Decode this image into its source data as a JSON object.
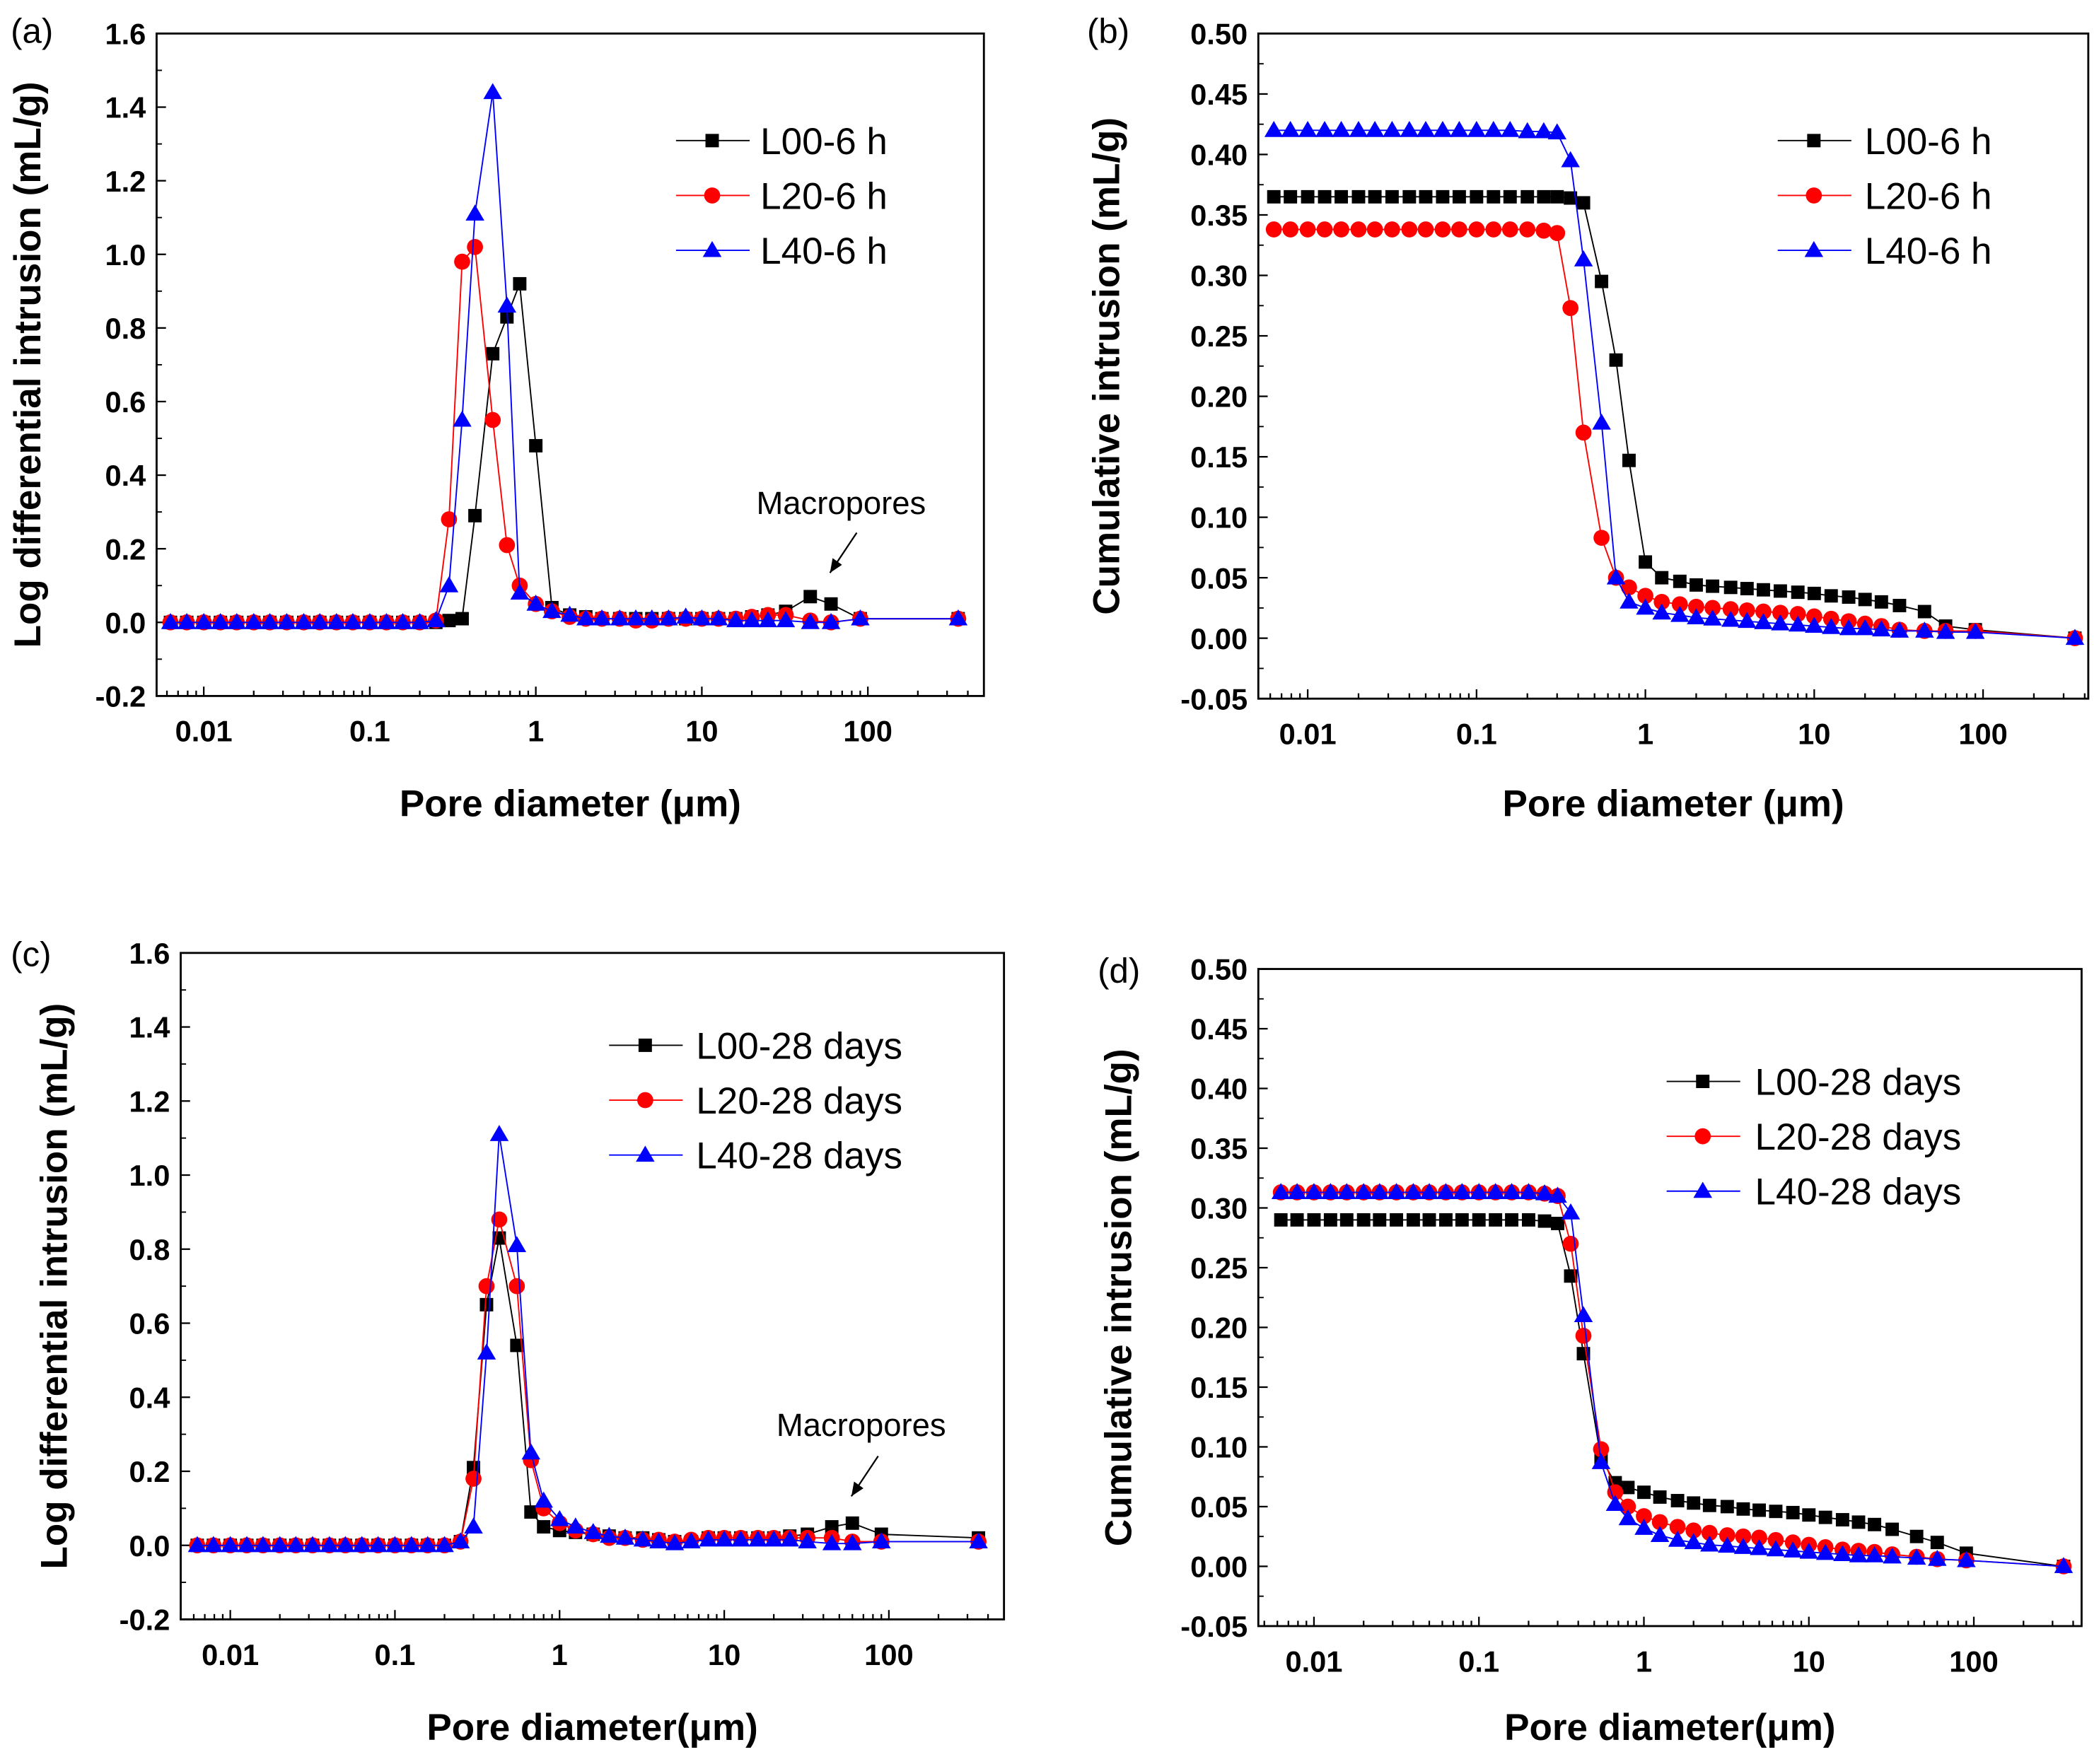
{
  "chart_data": [
    {
      "id": "a",
      "panel_label": "(a)",
      "type": "line",
      "xscale": "log",
      "xlabel": "Pore diameter (μm)",
      "ylabel": "Log differential intrusion (mL/g)",
      "xlim": [
        0.0052,
        500
      ],
      "ylim": [
        -0.2,
        1.6
      ],
      "yticks": [
        -0.2,
        0.0,
        0.2,
        0.4,
        0.6,
        0.8,
        1.0,
        1.2,
        1.4,
        1.6
      ],
      "ytick_labels": [
        "-0.2",
        "0.0",
        "0.2",
        "0.4",
        "0.6",
        "0.8",
        "1.0",
        "1.2",
        "1.4",
        "1.6"
      ],
      "xticks": [
        0.01,
        0.1,
        1,
        10,
        100
      ],
      "xtick_labels": [
        "0.01",
        "0.1",
        "1",
        "10",
        "100"
      ],
      "legend": "top-right",
      "annotation": "Macropores",
      "x": [
        0.0063,
        0.0079,
        0.01,
        0.0126,
        0.0158,
        0.02,
        0.025,
        0.0316,
        0.04,
        0.05,
        0.063,
        0.079,
        0.1,
        0.126,
        0.158,
        0.2,
        0.25,
        0.3,
        0.36,
        0.43,
        0.55,
        0.67,
        0.8,
        1.0,
        1.25,
        1.6,
        2,
        2.5,
        3.2,
        4,
        5,
        6.3,
        8,
        10,
        12.6,
        16,
        20,
        25,
        32,
        45,
        60,
        90,
        350
      ],
      "series": [
        {
          "name": "L00-6 h",
          "color": "#000000",
          "marker": "square",
          "values": [
            0,
            0,
            0,
            0,
            0,
            0,
            0,
            0,
            0,
            0,
            0,
            0,
            0,
            0,
            0,
            0,
            0,
            0.005,
            0.01,
            0.29,
            0.73,
            0.83,
            0.92,
            0.48,
            0.04,
            0.02,
            0.015,
            0.01,
            0.01,
            0.01,
            0.01,
            0.01,
            0.01,
            0.01,
            0.01,
            0.01,
            0.015,
            0.02,
            0.03,
            0.07,
            0.05,
            0.01,
            0.01
          ]
        },
        {
          "name": "L20-6 h",
          "color": "#ff0000",
          "marker": "circle",
          "values": [
            0,
            0,
            0,
            0,
            0,
            0,
            0,
            0,
            0,
            0,
            0,
            0,
            0,
            0,
            0,
            0,
            0.005,
            0.28,
            0.98,
            1.02,
            0.55,
            0.21,
            0.1,
            0.05,
            0.03,
            0.015,
            0.01,
            0.01,
            0.01,
            0.005,
            0.005,
            0.01,
            0.01,
            0.01,
            0.01,
            0.01,
            0.015,
            0.02,
            0.02,
            0.005,
            0,
            0.01,
            0.01
          ]
        },
        {
          "name": "L40-6 h",
          "color": "#0000ff",
          "marker": "triangle",
          "values": [
            0,
            0,
            0,
            0,
            0,
            0,
            0,
            0,
            0,
            0,
            0,
            0,
            0,
            0,
            0,
            0,
            0.005,
            0.1,
            0.55,
            1.11,
            1.44,
            0.86,
            0.08,
            0.05,
            0.03,
            0.02,
            0.01,
            0.01,
            0.01,
            0.01,
            0.01,
            0.01,
            0.015,
            0.01,
            0.01,
            0.005,
            0.005,
            0.005,
            0.005,
            0,
            0,
            0.01,
            0.01
          ]
        }
      ]
    },
    {
      "id": "b",
      "panel_label": "(b)",
      "type": "line",
      "xscale": "log",
      "xlabel": "Pore diameter (μm)",
      "ylabel": "Cumulative intrusion (mL/g)",
      "xlim": [
        0.0051,
        420
      ],
      "ylim": [
        -0.05,
        0.5
      ],
      "yticks": [
        -0.05,
        0,
        0.05,
        0.1,
        0.15,
        0.2,
        0.25,
        0.3,
        0.35,
        0.4,
        0.45,
        0.5
      ],
      "ytick_labels": [
        "-0.05",
        "0.00",
        "0.05",
        "0.10",
        "0.15",
        "0.20",
        "0.25",
        "0.30",
        "0.35",
        "0.40",
        "0.45",
        "0.50"
      ],
      "xticks": [
        0.01,
        0.1,
        1,
        10,
        100
      ],
      "xtick_labels": [
        "0.01",
        "0.1",
        "1",
        "10",
        "100"
      ],
      "legend": "top-right",
      "x": [
        0.0063,
        0.0079,
        0.01,
        0.0126,
        0.0158,
        0.02,
        0.025,
        0.0316,
        0.04,
        0.05,
        0.063,
        0.079,
        0.1,
        0.126,
        0.158,
        0.2,
        0.25,
        0.3,
        0.36,
        0.43,
        0.55,
        0.67,
        0.8,
        1.0,
        1.25,
        1.6,
        2,
        2.5,
        3.2,
        4,
        5,
        6.3,
        8,
        10,
        12.6,
        16,
        20,
        25,
        32,
        45,
        60,
        90,
        350
      ],
      "series": [
        {
          "name": "L00-6 h",
          "color": "#000000",
          "marker": "square",
          "values": [
            0.365,
            0.365,
            0.365,
            0.365,
            0.365,
            0.365,
            0.365,
            0.365,
            0.365,
            0.365,
            0.365,
            0.365,
            0.365,
            0.365,
            0.365,
            0.365,
            0.365,
            0.365,
            0.364,
            0.36,
            0.295,
            0.23,
            0.147,
            0.063,
            0.05,
            0.047,
            0.044,
            0.043,
            0.042,
            0.041,
            0.04,
            0.039,
            0.038,
            0.037,
            0.035,
            0.034,
            0.032,
            0.03,
            0.027,
            0.022,
            0.01,
            0.007,
            0
          ]
        },
        {
          "name": "L20-6 h",
          "color": "#ff0000",
          "marker": "circle",
          "values": [
            0.338,
            0.338,
            0.338,
            0.338,
            0.338,
            0.338,
            0.338,
            0.338,
            0.338,
            0.338,
            0.338,
            0.338,
            0.338,
            0.338,
            0.338,
            0.338,
            0.337,
            0.335,
            0.273,
            0.17,
            0.083,
            0.05,
            0.042,
            0.035,
            0.03,
            0.028,
            0.026,
            0.025,
            0.024,
            0.023,
            0.022,
            0.021,
            0.02,
            0.018,
            0.016,
            0.014,
            0.012,
            0.01,
            0.007,
            0.006,
            0.006,
            0.006,
            0
          ]
        },
        {
          "name": "L40-6 h",
          "color": "#0000ff",
          "marker": "triangle",
          "values": [
            0.42,
            0.42,
            0.42,
            0.42,
            0.42,
            0.42,
            0.42,
            0.42,
            0.42,
            0.42,
            0.42,
            0.42,
            0.42,
            0.42,
            0.42,
            0.419,
            0.419,
            0.418,
            0.395,
            0.313,
            0.178,
            0.05,
            0.03,
            0.025,
            0.021,
            0.019,
            0.017,
            0.016,
            0.015,
            0.014,
            0.013,
            0.012,
            0.011,
            0.01,
            0.009,
            0.008,
            0.008,
            0.007,
            0.006,
            0.006,
            0.005,
            0.005,
            0
          ]
        }
      ]
    },
    {
      "id": "c",
      "panel_label": "(c)",
      "type": "line",
      "xscale": "log",
      "xlabel": "Pore diameter(μm)",
      "ylabel": "Log differential intrusion (mL/g)",
      "xlim": [
        0.005,
        500
      ],
      "ylim": [
        -0.2,
        1.6
      ],
      "yticks": [
        -0.2,
        0.0,
        0.2,
        0.4,
        0.6,
        0.8,
        1.0,
        1.2,
        1.4,
        1.6
      ],
      "ytick_labels": [
        "-0.2",
        "0.0",
        "0.2",
        "0.4",
        "0.6",
        "0.8",
        "1.0",
        "1.2",
        "1.4",
        "1.6"
      ],
      "xticks": [
        0.01,
        0.1,
        1,
        10,
        100
      ],
      "xtick_labels": [
        "0.01",
        "0.1",
        "1",
        "10",
        "100"
      ],
      "legend": "top-right",
      "annotation": "Macropores",
      "x": [
        0.0063,
        0.0079,
        0.01,
        0.0126,
        0.0158,
        0.02,
        0.025,
        0.0316,
        0.04,
        0.05,
        0.063,
        0.079,
        0.1,
        0.126,
        0.158,
        0.2,
        0.25,
        0.3,
        0.36,
        0.43,
        0.55,
        0.67,
        0.8,
        1.0,
        1.25,
        1.6,
        2,
        2.5,
        3.2,
        4,
        5,
        6.3,
        8,
        10,
        12.6,
        16,
        20,
        25,
        32,
        45,
        60,
        90,
        350
      ],
      "series": [
        {
          "name": "L00-28 days",
          "color": "#000000",
          "marker": "square",
          "values": [
            0,
            0,
            0,
            0,
            0,
            0,
            0,
            0,
            0,
            0,
            0,
            0,
            0,
            0,
            0,
            0,
            0.01,
            0.21,
            0.65,
            0.83,
            0.54,
            0.09,
            0.05,
            0.04,
            0.035,
            0.03,
            0.025,
            0.02,
            0.02,
            0.015,
            0.01,
            0.01,
            0.02,
            0.02,
            0.02,
            0.02,
            0.02,
            0.025,
            0.03,
            0.05,
            0.06,
            0.03,
            0.02
          ]
        },
        {
          "name": "L20-28 days",
          "color": "#ff0000",
          "marker": "circle",
          "values": [
            0,
            0,
            0,
            0,
            0,
            0,
            0,
            0,
            0,
            0,
            0,
            0,
            0,
            0,
            0,
            0,
            0.01,
            0.18,
            0.7,
            0.88,
            0.7,
            0.23,
            0.1,
            0.06,
            0.04,
            0.03,
            0.02,
            0.02,
            0.015,
            0.015,
            0.01,
            0.015,
            0.02,
            0.02,
            0.02,
            0.02,
            0.02,
            0.02,
            0.02,
            0.02,
            0.01,
            0.01,
            0.01
          ]
        },
        {
          "name": "L40-28 days",
          "color": "#0000ff",
          "marker": "triangle",
          "values": [
            0,
            0,
            0,
            0,
            0,
            0,
            0,
            0,
            0,
            0,
            0,
            0,
            0,
            0,
            0,
            0,
            0.01,
            0.05,
            0.52,
            1.11,
            0.81,
            0.25,
            0.12,
            0.07,
            0.05,
            0.035,
            0.025,
            0.02,
            0.015,
            0.01,
            0.005,
            0.01,
            0.015,
            0.015,
            0.015,
            0.015,
            0.015,
            0.015,
            0.01,
            0.005,
            0.005,
            0.01,
            0.01
          ]
        }
      ]
    },
    {
      "id": "d",
      "panel_label": "(d)",
      "type": "line",
      "xscale": "log",
      "xlabel": "Pore diameter(μm)",
      "ylabel": "Cumulative intrusion (mL/g)",
      "xlim": [
        0.0046,
        450
      ],
      "ylim": [
        -0.05,
        0.5
      ],
      "yticks": [
        -0.05,
        0,
        0.05,
        0.1,
        0.15,
        0.2,
        0.25,
        0.3,
        0.35,
        0.4,
        0.45,
        0.5
      ],
      "ytick_labels": [
        "-0.05",
        "0.00",
        "0.05",
        "0.10",
        "0.15",
        "0.20",
        "0.25",
        "0.30",
        "0.35",
        "0.40",
        "0.45",
        "0.50"
      ],
      "xticks": [
        0.01,
        0.1,
        1,
        10,
        100
      ],
      "xtick_labels": [
        "0.01",
        "0.1",
        "1",
        "10",
        "100"
      ],
      "legend": "top-right",
      "x": [
        0.0063,
        0.0079,
        0.01,
        0.0126,
        0.0158,
        0.02,
        0.025,
        0.0316,
        0.04,
        0.05,
        0.063,
        0.079,
        0.1,
        0.126,
        0.158,
        0.2,
        0.25,
        0.3,
        0.36,
        0.43,
        0.55,
        0.67,
        0.8,
        1.0,
        1.25,
        1.6,
        2,
        2.5,
        3.2,
        4,
        5,
        6.3,
        8,
        10,
        12.6,
        16,
        20,
        25,
        32,
        45,
        60,
        90,
        350
      ],
      "series": [
        {
          "name": "L00-28 days",
          "color": "#000000",
          "marker": "square",
          "values": [
            0.29,
            0.29,
            0.29,
            0.29,
            0.29,
            0.29,
            0.29,
            0.29,
            0.29,
            0.29,
            0.29,
            0.29,
            0.29,
            0.29,
            0.29,
            0.29,
            0.289,
            0.287,
            0.243,
            0.178,
            0.09,
            0.07,
            0.066,
            0.062,
            0.058,
            0.055,
            0.053,
            0.051,
            0.05,
            0.048,
            0.047,
            0.046,
            0.045,
            0.043,
            0.041,
            0.039,
            0.037,
            0.035,
            0.031,
            0.025,
            0.02,
            0.011,
            0
          ]
        },
        {
          "name": "L20-28 days",
          "color": "#ff0000",
          "marker": "circle",
          "values": [
            0.313,
            0.313,
            0.313,
            0.313,
            0.313,
            0.313,
            0.313,
            0.313,
            0.313,
            0.313,
            0.313,
            0.313,
            0.313,
            0.313,
            0.313,
            0.313,
            0.312,
            0.31,
            0.27,
            0.193,
            0.098,
            0.062,
            0.05,
            0.042,
            0.037,
            0.033,
            0.03,
            0.028,
            0.026,
            0.025,
            0.024,
            0.022,
            0.02,
            0.018,
            0.016,
            0.014,
            0.013,
            0.012,
            0.01,
            0.008,
            0.006,
            0.005,
            0
          ]
        },
        {
          "name": "L40-28 days",
          "color": "#0000ff",
          "marker": "triangle",
          "values": [
            0.313,
            0.313,
            0.313,
            0.313,
            0.313,
            0.313,
            0.313,
            0.313,
            0.313,
            0.313,
            0.313,
            0.313,
            0.313,
            0.313,
            0.313,
            0.313,
            0.312,
            0.31,
            0.296,
            0.21,
            0.087,
            0.052,
            0.04,
            0.032,
            0.026,
            0.022,
            0.02,
            0.018,
            0.017,
            0.016,
            0.015,
            0.014,
            0.013,
            0.012,
            0.011,
            0.01,
            0.009,
            0.009,
            0.008,
            0.007,
            0.006,
            0.005,
            0
          ]
        }
      ]
    }
  ]
}
